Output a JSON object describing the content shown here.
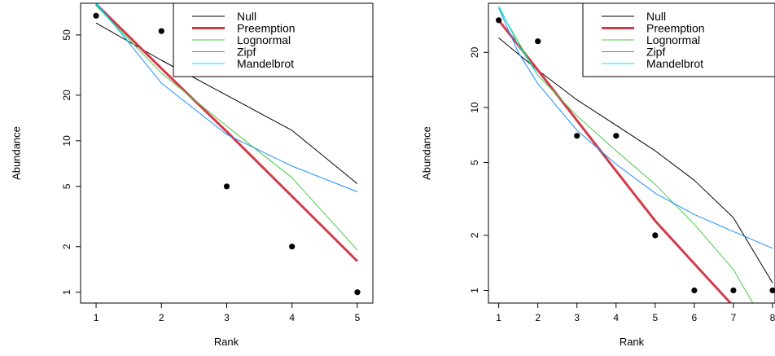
{
  "chart_data": [
    {
      "type": "line",
      "xlabel": "Rank",
      "ylabel": "Abundance",
      "y_scale": "log",
      "xlim": [
        0.8,
        5.2
      ],
      "ylim": [
        0.88,
        78
      ],
      "x_ticks": [
        "1",
        "2",
        "3",
        "4",
        "5"
      ],
      "y_ticks": [
        "1",
        "2",
        "5",
        "10",
        "20",
        "50"
      ],
      "legend_position": "top-right",
      "observed_points": {
        "x": [
          1,
          2,
          3,
          4,
          5
        ],
        "y": [
          67,
          53,
          5,
          2,
          1
        ]
      },
      "series": [
        {
          "name": "Null",
          "color": "#000000",
          "x": [
            1,
            2,
            3,
            4,
            5
          ],
          "y": [
            60,
            34,
            20,
            11.7,
            5.2
          ]
        },
        {
          "name": "Preemption",
          "color": "#d33b4b",
          "x": [
            1,
            2,
            3,
            4,
            5
          ],
          "y": [
            80,
            30,
            11.5,
            4.3,
            1.6
          ]
        },
        {
          "name": "Lognormal",
          "color": "#4cc94c",
          "x": [
            1,
            2,
            3,
            4,
            5
          ],
          "y": [
            78,
            28,
            12.5,
            5.7,
            1.9
          ]
        },
        {
          "name": "Zipf",
          "color": "#1e90ff",
          "x": [
            1,
            2,
            3,
            4,
            5
          ],
          "y": [
            82,
            24,
            11,
            6.8,
            4.6
          ]
        },
        {
          "name": "Mandelbrot",
          "color": "#00e5ee",
          "x": [
            1,
            1.5
          ],
          "y": [
            80,
            45
          ]
        }
      ]
    },
    {
      "type": "line",
      "xlabel": "Rank",
      "ylabel": "Abundance",
      "y_scale": "log",
      "xlim": [
        0.8,
        8.0
      ],
      "ylim": [
        0.88,
        36
      ],
      "x_ticks": [
        "1",
        "2",
        "3",
        "4",
        "5",
        "6",
        "7",
        "8"
      ],
      "y_ticks": [
        "1",
        "2",
        "5",
        "10",
        "20"
      ],
      "legend_position": "top-right",
      "observed_points": {
        "x": [
          1,
          2,
          3,
          4,
          5,
          6,
          7,
          8
        ],
        "y": [
          30,
          23,
          7,
          7,
          2,
          1,
          1,
          1
        ]
      },
      "series": [
        {
          "name": "Null",
          "color": "#000000",
          "x": [
            1,
            2,
            3,
            4,
            5,
            6,
            7,
            8
          ],
          "y": [
            24,
            16,
            11,
            8,
            5.8,
            4.0,
            2.5,
            1.1
          ]
        },
        {
          "name": "Preemption",
          "color": "#d33b4b",
          "x": [
            1,
            2,
            3,
            4,
            5,
            6,
            7
          ],
          "y": [
            30,
            16,
            8.5,
            4.5,
            2.4,
            1.4,
            0.82
          ]
        },
        {
          "name": "Lognormal",
          "color": "#4cc94c",
          "x": [
            1,
            2,
            3,
            4,
            5,
            6,
            7,
            7.5
          ],
          "y": [
            35,
            15,
            9,
            5.8,
            3.8,
            2.3,
            1.3,
            0.85
          ]
        },
        {
          "name": "Zipf",
          "color": "#1e90ff",
          "x": [
            1,
            1.5,
            2,
            3,
            4,
            5,
            6,
            7,
            8
          ],
          "y": [
            35,
            20,
            13.5,
            7.5,
            4.9,
            3.4,
            2.6,
            2.1,
            1.7
          ]
        },
        {
          "name": "Mandelbrot",
          "color": "#00e5ee",
          "x": [
            1,
            1.5,
            2
          ],
          "y": [
            36,
            22,
            15
          ]
        }
      ]
    }
  ]
}
